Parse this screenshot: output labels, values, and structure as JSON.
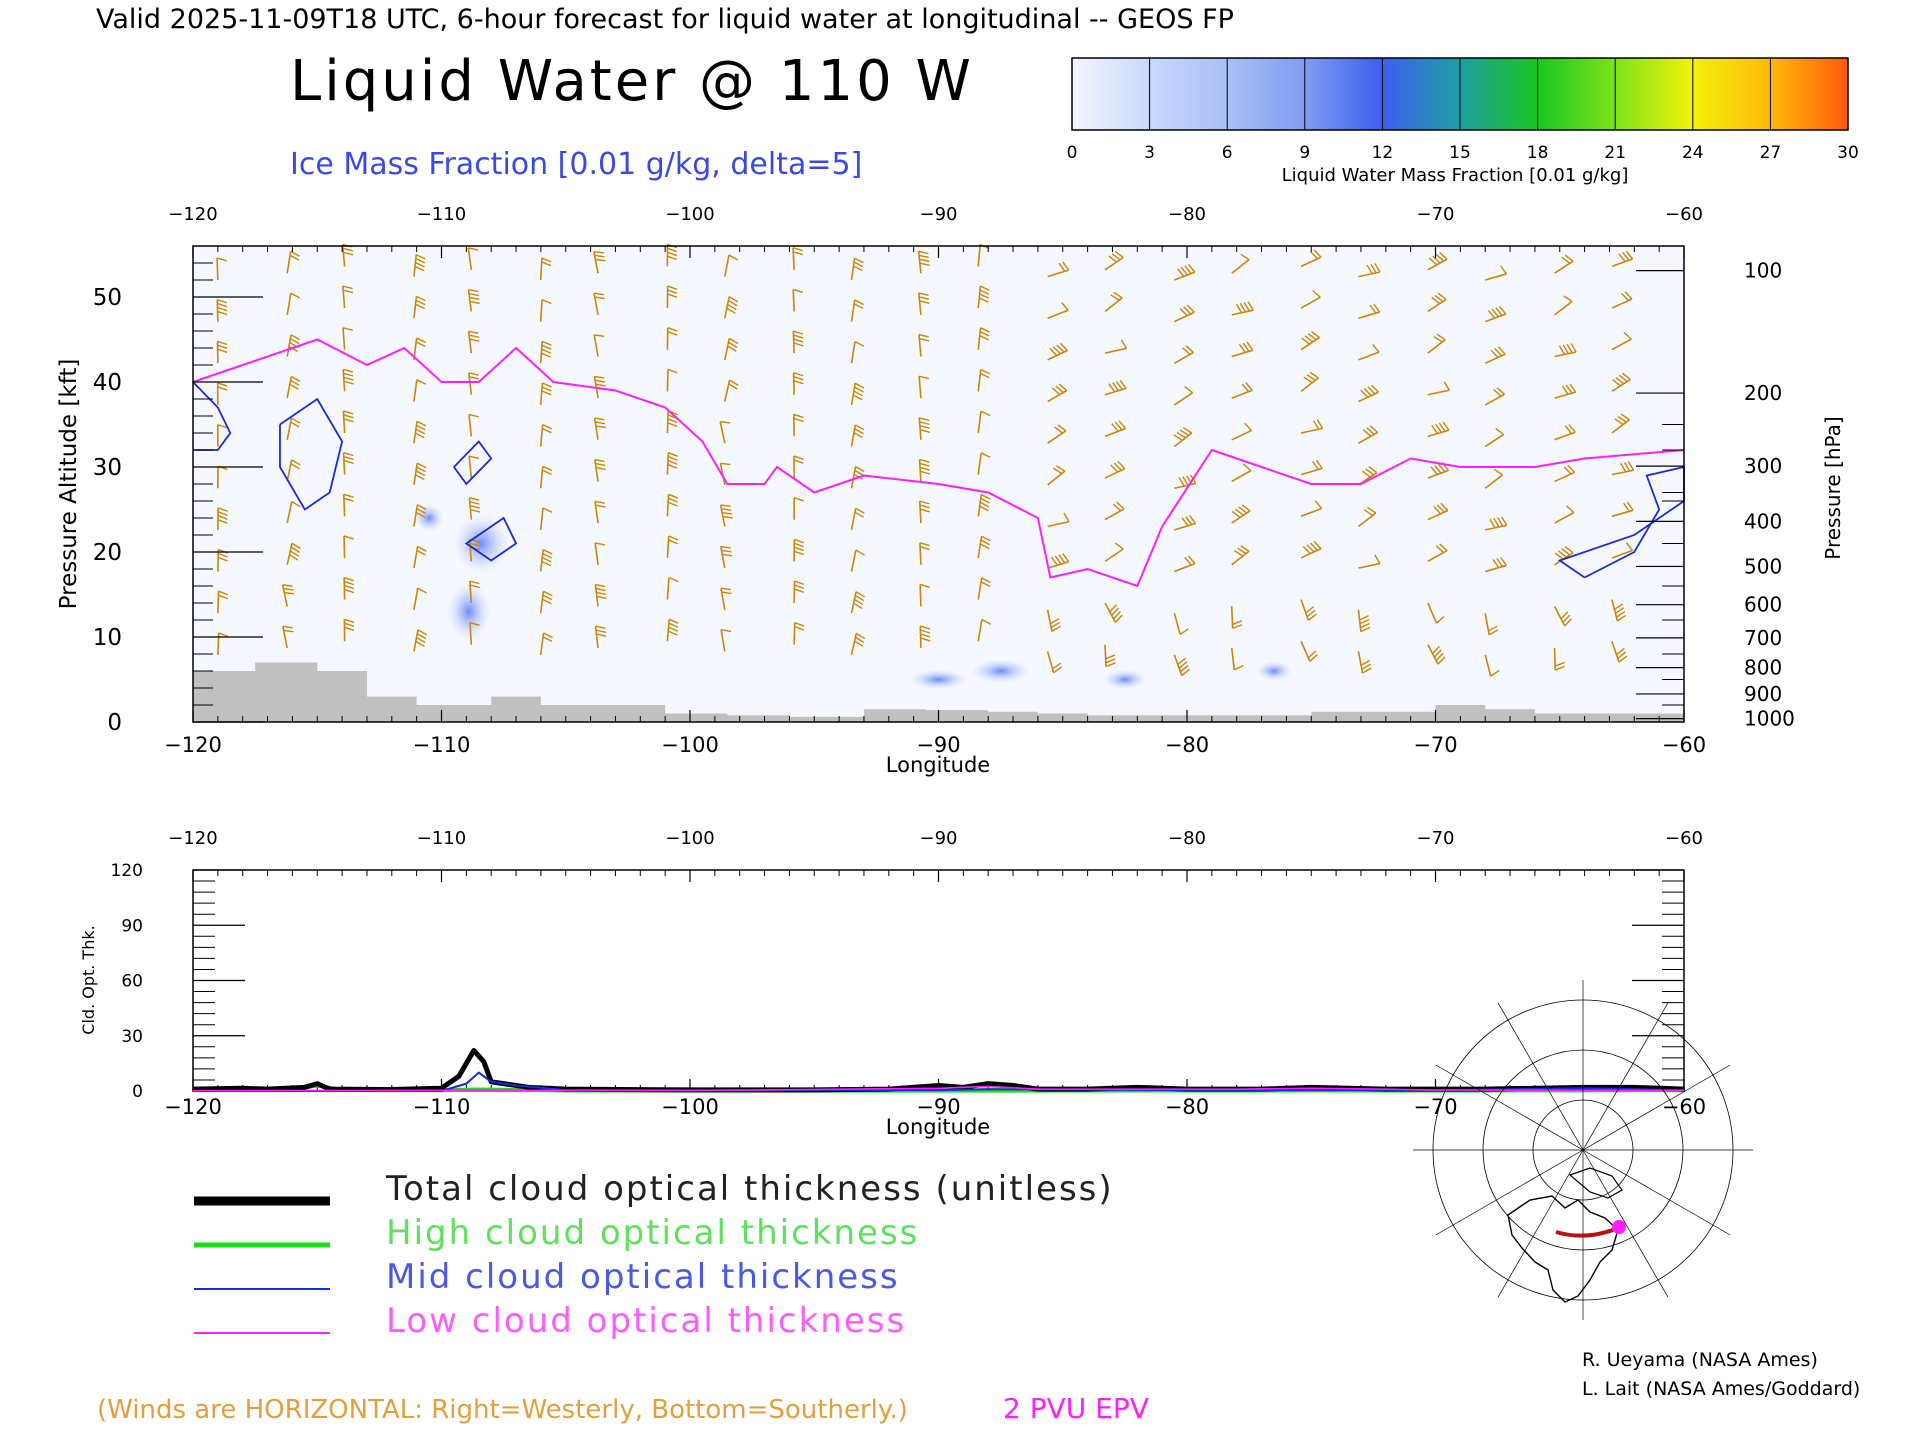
{
  "header": {
    "valid_line": "Valid 2025-11-09T18 UTC, 6-hour forecast for liquid water at longitudinal -- GEOS FP",
    "main_title": "Liquid Water @ 110 W",
    "ice_label": "Ice Mass Fraction [0.01 g/kg, delta=5]"
  },
  "colorbar": {
    "ticks": [
      "0",
      "3",
      "6",
      "9",
      "12",
      "15",
      "18",
      "21",
      "24",
      "27",
      "30"
    ],
    "label": "Liquid Water Mass Fraction [0.01 g/kg]",
    "colors": [
      "#f4f6ff",
      "#c9d8fb",
      "#a9c0f6",
      "#7f9cf2",
      "#3f5ef0",
      "#1d9f9f",
      "#19c61f",
      "#7fe21a",
      "#f2f20a",
      "#ffb80a",
      "#ff5a0a"
    ]
  },
  "colors": {
    "wind": "#c8860a",
    "epv": "#ff20ff",
    "ice": "#1a2ad6",
    "terrain": "#c0c0c0",
    "total": "#000000",
    "high": "#16e016",
    "mid": "#1a2ad6",
    "low": "#ff20ff",
    "footnote": "#e0a040"
  },
  "chart_data": [
    {
      "type": "heatmap",
      "title": "Liquid Water @ 110 W",
      "xlabel": "Longitude",
      "ylabel": "Pressure Altitude [kft]",
      "ylabel_right": "Pressure [hPa]",
      "xlim": [
        -120,
        -60
      ],
      "ylim": [
        0,
        56
      ],
      "x_ticks": [
        "−120",
        "−110",
        "−100",
        "−90",
        "−80",
        "−70",
        "−60"
      ],
      "x_tick_values": [
        -120,
        -110,
        -100,
        -90,
        -80,
        -70,
        -60
      ],
      "y_ticks": [
        "0",
        "10",
        "20",
        "30",
        "40",
        "50"
      ],
      "y_tick_values": [
        0,
        10,
        20,
        30,
        40,
        50
      ],
      "pressure_ticks": [
        "100",
        "200",
        "300",
        "400",
        "500",
        "600",
        "700",
        "800",
        "900",
        "1000"
      ],
      "pressure_kft": [
        53.1,
        38.7,
        30.1,
        23.6,
        18.3,
        13.8,
        9.9,
        6.4,
        3.3,
        0.4
      ],
      "epv_2pvu_kft": [
        [
          -120,
          40
        ],
        [
          -118,
          42
        ],
        [
          -115,
          45
        ],
        [
          -113,
          42
        ],
        [
          -111.5,
          44
        ],
        [
          -110,
          40
        ],
        [
          -108.5,
          40
        ],
        [
          -107,
          44
        ],
        [
          -105.5,
          40
        ],
        [
          -103,
          39
        ],
        [
          -101,
          37
        ],
        [
          -99.5,
          33
        ],
        [
          -98.5,
          28
        ],
        [
          -97,
          28
        ],
        [
          -96.5,
          30
        ],
        [
          -95,
          27
        ],
        [
          -93,
          29
        ],
        [
          -90,
          28
        ],
        [
          -88,
          27
        ],
        [
          -86,
          24
        ],
        [
          -85.5,
          17
        ],
        [
          -84,
          18
        ],
        [
          -82,
          16
        ],
        [
          -81,
          23
        ],
        [
          -79,
          32
        ],
        [
          -77,
          30
        ],
        [
          -75,
          28
        ],
        [
          -73,
          28
        ],
        [
          -71,
          31
        ],
        [
          -69,
          30
        ],
        [
          -66,
          30
        ],
        [
          -64,
          31
        ],
        [
          -60,
          32
        ]
      ],
      "ice_contours_kft": [
        [
          [
            -120,
            40
          ],
          [
            -119,
            37
          ],
          [
            -118.5,
            34
          ],
          [
            -119,
            32
          ],
          [
            -120,
            32
          ]
        ],
        [
          [
            -116.5,
            35
          ],
          [
            -115,
            38
          ],
          [
            -114,
            33
          ],
          [
            -114.5,
            27
          ],
          [
            -115.5,
            25
          ],
          [
            -116.5,
            30
          ],
          [
            -116.5,
            35
          ]
        ],
        [
          [
            -109.5,
            30
          ],
          [
            -108.5,
            33
          ],
          [
            -108,
            31
          ],
          [
            -109,
            28
          ],
          [
            -109.5,
            30
          ]
        ],
        [
          [
            -108.5,
            22
          ],
          [
            -107.5,
            24
          ],
          [
            -107,
            21
          ],
          [
            -108,
            19
          ],
          [
            -109,
            21
          ],
          [
            -108.5,
            22
          ]
        ],
        [
          [
            -64,
            17
          ],
          [
            -62,
            20
          ],
          [
            -61,
            25
          ],
          [
            -61.5,
            29
          ],
          [
            -60,
            30
          ],
          [
            -60,
            26
          ],
          [
            -62,
            22
          ],
          [
            -65,
            19
          ],
          [
            -64,
            17
          ]
        ]
      ],
      "terrain_kft": [
        [
          -120,
          6
        ],
        [
          -117.5,
          7
        ],
        [
          -115,
          6
        ],
        [
          -113,
          3
        ],
        [
          -111,
          2
        ],
        [
          -108,
          3
        ],
        [
          -106,
          2
        ],
        [
          -103.5,
          2
        ],
        [
          -101,
          1
        ],
        [
          -98.5,
          0.8
        ],
        [
          -96,
          0.6
        ],
        [
          -93,
          1.5
        ],
        [
          -90.5,
          1.4
        ],
        [
          -88,
          1.2
        ],
        [
          -86,
          1
        ],
        [
          -84,
          0.8
        ],
        [
          -81,
          0.8
        ],
        [
          -78,
          0.8
        ],
        [
          -75,
          1.2
        ],
        [
          -72,
          1.2
        ],
        [
          -70,
          2
        ],
        [
          -68,
          1.5
        ],
        [
          -66,
          1
        ],
        [
          -60,
          0.2
        ]
      ]
    },
    {
      "type": "line",
      "xlabel": "Longitude",
      "ylabel": "Cld. Opt. Thk.",
      "xlim": [
        -120,
        -60
      ],
      "ylim": [
        0,
        120
      ],
      "y_ticks": [
        "0",
        "30",
        "60",
        "90",
        "120"
      ],
      "y_tick_values": [
        0,
        30,
        60,
        90,
        120
      ],
      "x_ticks": [
        "−120",
        "−110",
        "−100",
        "−90",
        "−80",
        "−70",
        "−60"
      ],
      "x_tick_values": [
        -120,
        -110,
        -100,
        -90,
        -80,
        -70,
        -60
      ],
      "series": [
        {
          "name": "Total cloud optical thickness (unitless)",
          "x": [
            -120,
            -118,
            -117,
            -115.5,
            -115,
            -114.5,
            -112,
            -110,
            -109.3,
            -109,
            -108.7,
            -108.3,
            -108,
            -107.5,
            -106.5,
            -105,
            -100,
            -95,
            -92,
            -90,
            -89,
            -88,
            -87,
            -86,
            -84,
            -82,
            -80,
            -77,
            -75,
            -72,
            -68,
            -64,
            -62,
            -60
          ],
          "y": [
            1,
            1.5,
            1,
            2,
            4,
            1,
            0.8,
            1.5,
            8,
            15,
            22,
            16,
            5,
            4,
            2,
            1,
            0.6,
            0.6,
            1,
            3,
            2,
            4,
            3,
            1,
            1,
            2,
            1,
            1,
            2,
            1,
            1,
            2,
            2,
            1
          ]
        },
        {
          "name": "High cloud optical thickness",
          "x": [
            -120,
            -116,
            -115,
            -114,
            -110,
            -108.5,
            -105,
            -100,
            -90,
            -80,
            -70,
            -60
          ],
          "y": [
            0.5,
            0.8,
            3,
            0.5,
            0.4,
            0.8,
            0.3,
            0.2,
            0.2,
            0.3,
            0.3,
            0.4
          ]
        },
        {
          "name": "Mid cloud optical thickness",
          "x": [
            -120,
            -110,
            -109,
            -108.5,
            -108,
            -107,
            -105,
            -90,
            -88,
            -80,
            -70,
            -64,
            -60
          ],
          "y": [
            0,
            0,
            4,
            10,
            5,
            3,
            0.5,
            0.5,
            1,
            0.5,
            0.5,
            1.5,
            0.5
          ]
        },
        {
          "name": "Low cloud optical thickness",
          "x": [
            -120,
            -108.5,
            -100,
            -90,
            -89,
            -88,
            -86,
            -82,
            -78,
            -75,
            -72,
            -70,
            -60
          ],
          "y": [
            0.2,
            0.4,
            0.2,
            1.5,
            2,
            2.5,
            1,
            1,
            1,
            1.5,
            1,
            0.5,
            0.3
          ]
        }
      ]
    }
  ],
  "legend": [
    {
      "label": "Total cloud optical thickness (unitless)",
      "color": "#000000"
    },
    {
      "label": "High cloud optical thickness",
      "color": "#16e016"
    },
    {
      "label": "Mid cloud optical thickness",
      "color": "#1a2ad6"
    },
    {
      "label": "Low cloud optical thickness",
      "color": "#ff20ff"
    }
  ],
  "credits": {
    "line1": "R. Ueyama (NASA Ames)",
    "line2": "L. Lait (NASA Ames/Goddard)"
  },
  "footnote": {
    "winds": "(Winds are HORIZONTAL: Right=Westerly, Bottom=Southerly.)",
    "epv": "2 PVU EPV"
  },
  "map_icon": "north-america-polar-map"
}
